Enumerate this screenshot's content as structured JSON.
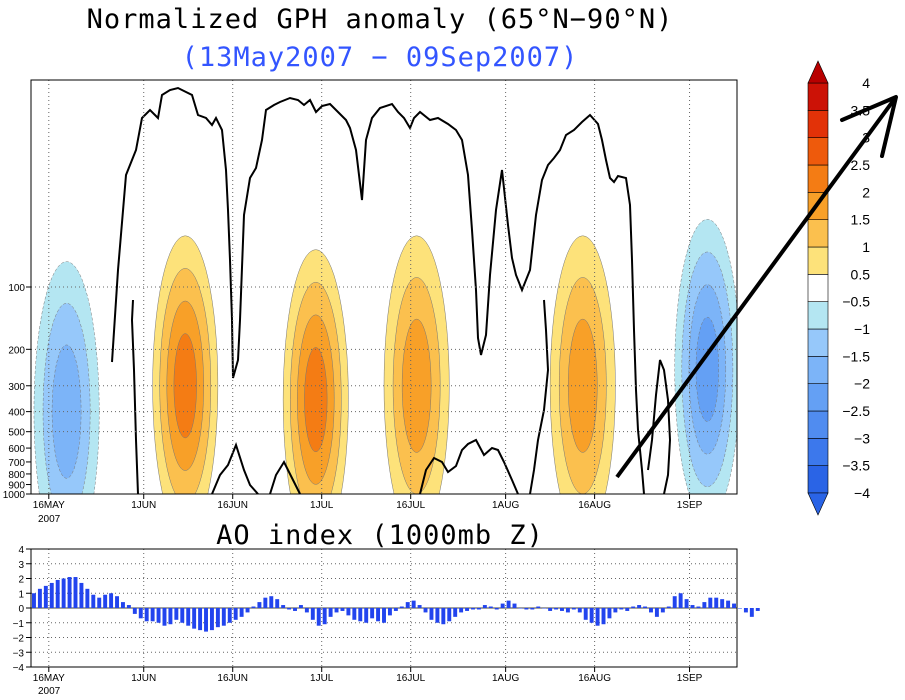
{
  "chart_data": [
    {
      "type": "heatmap",
      "title": "Normalized GPH anomaly (65°N−90°N)",
      "subtitle": "(13May2007 − 09Sep2007)",
      "x_ticks": [
        {
          "date": "2007-05-16",
          "label": "16MAY"
        },
        {
          "date": "2007-06-01",
          "label": "1JUN"
        },
        {
          "date": "2007-06-16",
          "label": "16JUN"
        },
        {
          "date": "2007-07-01",
          "label": "1JUL"
        },
        {
          "date": "2007-07-16",
          "label": "16JUL"
        },
        {
          "date": "2007-08-01",
          "label": "1AUG"
        },
        {
          "date": "2007-08-16",
          "label": "16AUG"
        },
        {
          "date": "2007-09-01",
          "label": "1SEP"
        }
      ],
      "year_label": "2007",
      "y_axis": "pressure (log)",
      "y_ticks": [
        100,
        200,
        300,
        400,
        500,
        600,
        700,
        800,
        900,
        1000
      ],
      "colorbar": {
        "levels": [
          -4,
          -3.5,
          -3,
          -2.5,
          -2,
          -1.5,
          -1,
          -0.5,
          0.5,
          1,
          1.5,
          2,
          2.5,
          3,
          3.5,
          4
        ],
        "level_labels": [
          "−4",
          "−3.5",
          "−3",
          "−2.5",
          "−2",
          "−1.5",
          "−1",
          "−0.5",
          "0.5",
          "1",
          "1.5",
          "2",
          "2.5",
          "3",
          "3.5",
          "4"
        ],
        "colors": [
          "#2a64e6",
          "#3c78ec",
          "#508cf0",
          "#64a0f4",
          "#7cb4f8",
          "#96c8fa",
          "#b4e6f2",
          "#ffffff",
          "#fde27a",
          "#fbc04e",
          "#f8a028",
          "#f47c14",
          "#ee5a0c",
          "#e23208",
          "#cc1206"
        ]
      },
      "features": [
        {
          "kind": "positive",
          "center_date": "2007-06-08",
          "center_hPa": 300,
          "peak": 2.0
        },
        {
          "kind": "positive",
          "center_date": "2007-06-30",
          "center_hPa": 350,
          "peak": 2.0
        },
        {
          "kind": "positive",
          "center_date": "2007-07-17",
          "center_hPa": 300,
          "peak": 1.5
        },
        {
          "kind": "positive",
          "center_date": "2007-08-14",
          "center_hPa": 300,
          "peak": 1.5
        },
        {
          "kind": "negative",
          "center_date": "2007-05-19",
          "center_hPa": 400,
          "peak": -1.5
        },
        {
          "kind": "negative",
          "center_date": "2007-09-04",
          "center_hPa": 250,
          "peak": -2.0
        }
      ],
      "grid": "dotted"
    },
    {
      "type": "bar",
      "title": "AO index (1000mb Z)",
      "ylim": [
        -4,
        4
      ],
      "y_ticks": [
        -4,
        -3,
        -2,
        -1,
        0,
        1,
        2,
        3,
        4
      ],
      "y_tick_labels": [
        "−4",
        "−3",
        "−2",
        "−1",
        "0",
        "1",
        "2",
        "3",
        "4"
      ],
      "start_date": "2007-05-13",
      "values": [
        1.0,
        1.3,
        1.5,
        1.7,
        1.9,
        2.0,
        2.1,
        2.1,
        1.7,
        1.3,
        0.9,
        0.7,
        0.9,
        1.0,
        0.8,
        0.4,
        0.2,
        -0.4,
        -0.7,
        -0.9,
        -0.9,
        -1.0,
        -1.2,
        -1.1,
        -0.8,
        -1.0,
        -1.2,
        -1.4,
        -1.5,
        -1.6,
        -1.5,
        -1.3,
        -1.2,
        -1.0,
        -0.8,
        -0.6,
        -0.3,
        0.1,
        0.4,
        0.7,
        0.8,
        0.6,
        0.2,
        -0.1,
        -0.2,
        0.2,
        -0.3,
        -0.8,
        -1.2,
        -1.1,
        -0.6,
        -0.3,
        -0.2,
        -0.5,
        -0.8,
        -0.9,
        -1.0,
        -0.7,
        -0.9,
        -1.0,
        -0.5,
        -0.2,
        0.1,
        0.4,
        0.5,
        0.2,
        -0.3,
        -0.8,
        -1.0,
        -1.1,
        -0.9,
        -0.6,
        -0.3,
        -0.2,
        -0.1,
        -0.1,
        0.2,
        0.1,
        -0.1,
        0.3,
        0.5,
        0.3,
        0.0,
        -0.1,
        -0.1,
        0.1,
        0.0,
        -0.2,
        -0.1,
        -0.2,
        -0.3,
        -0.1,
        -0.3,
        -0.8,
        -1.0,
        -1.2,
        -1.1,
        -0.7,
        -0.3,
        -0.1,
        -0.2,
        0.1,
        0.2,
        0.1,
        -0.3,
        -0.6,
        -0.3,
        0.1,
        0.8,
        1.0,
        0.6,
        0.2,
        0.1,
        0.4,
        0.7,
        0.7,
        0.6,
        0.5,
        0.3,
        0.0,
        -0.3,
        -0.6,
        -0.2
      ],
      "color": "#2244ee",
      "x_ticks": [
        {
          "date": "2007-05-16",
          "label": "16MAY"
        },
        {
          "date": "2007-06-01",
          "label": "1JUN"
        },
        {
          "date": "2007-06-16",
          "label": "16JUN"
        },
        {
          "date": "2007-07-01",
          "label": "1JUL"
        },
        {
          "date": "2007-07-16",
          "label": "16JUL"
        },
        {
          "date": "2007-08-01",
          "label": "1AUG"
        },
        {
          "date": "2007-08-16",
          "label": "16AUG"
        },
        {
          "date": "2007-09-01",
          "label": "1SEP"
        }
      ],
      "year_label": "2007",
      "grid": "dotted"
    }
  ]
}
